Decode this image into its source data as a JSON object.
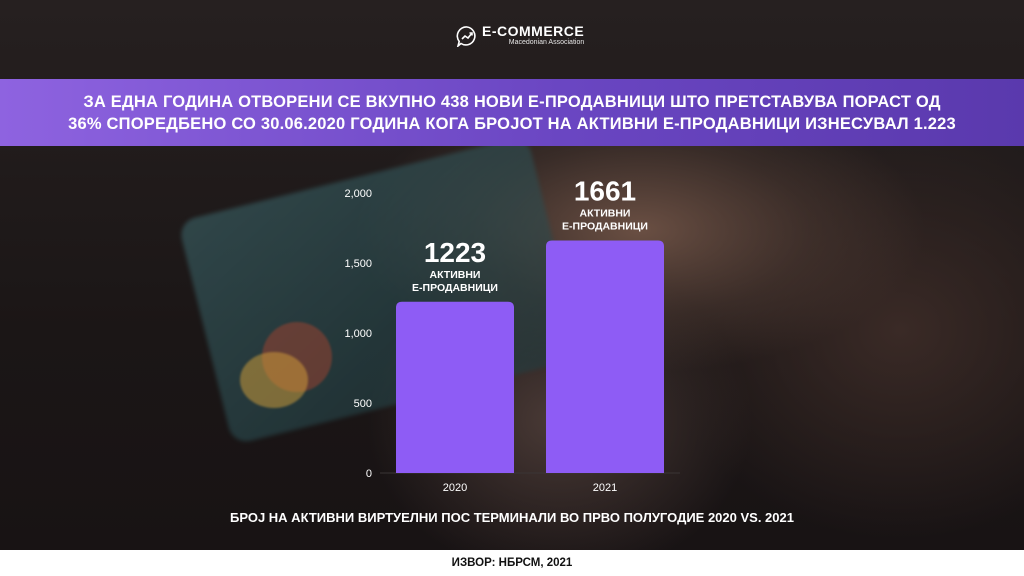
{
  "logo": {
    "name": "E-COMMERCE",
    "sub": "Macedonian Association"
  },
  "headline": {
    "line1": "ЗА ЕДНА ГОДИНА ОТВОРЕНИ СЕ ВКУПНО 438 НОВИ Е-ПРОДАВНИЦИ ШТО ПРЕТСТАВУВА ПОРАСТ ОД",
    "line2": "36% СПОРЕДБЕНО СО 30.06.2020 ГОДИНА КОГА БРОЈОТ НА АКТИВНИ Е-ПРОДАВНИЦИ ИЗНЕСУВАЛ 1.223"
  },
  "chart_data": {
    "type": "bar",
    "title": "БРОЈ НА АКТИВНИ ВИРТУЕЛНИ ПОС ТЕРМИНАЛИ ВО ПРВО ПОЛУГОДИЕ 2020 VS. 2021",
    "categories": [
      "2020",
      "2021"
    ],
    "values": [
      1223,
      1661
    ],
    "value_labels": [
      "1223",
      "1661"
    ],
    "bar_label_line1": "АКТИВНИ",
    "bar_label_line2": "Е-ПРОДАВНИЦИ",
    "yticks": [
      "0",
      "500",
      "1,000",
      "1,500",
      "2,000"
    ],
    "ylim": [
      0,
      2000
    ],
    "grid": false,
    "bar_color": "#8e5cf5"
  },
  "source": "ИЗВОР: НБРСМ, 2021"
}
